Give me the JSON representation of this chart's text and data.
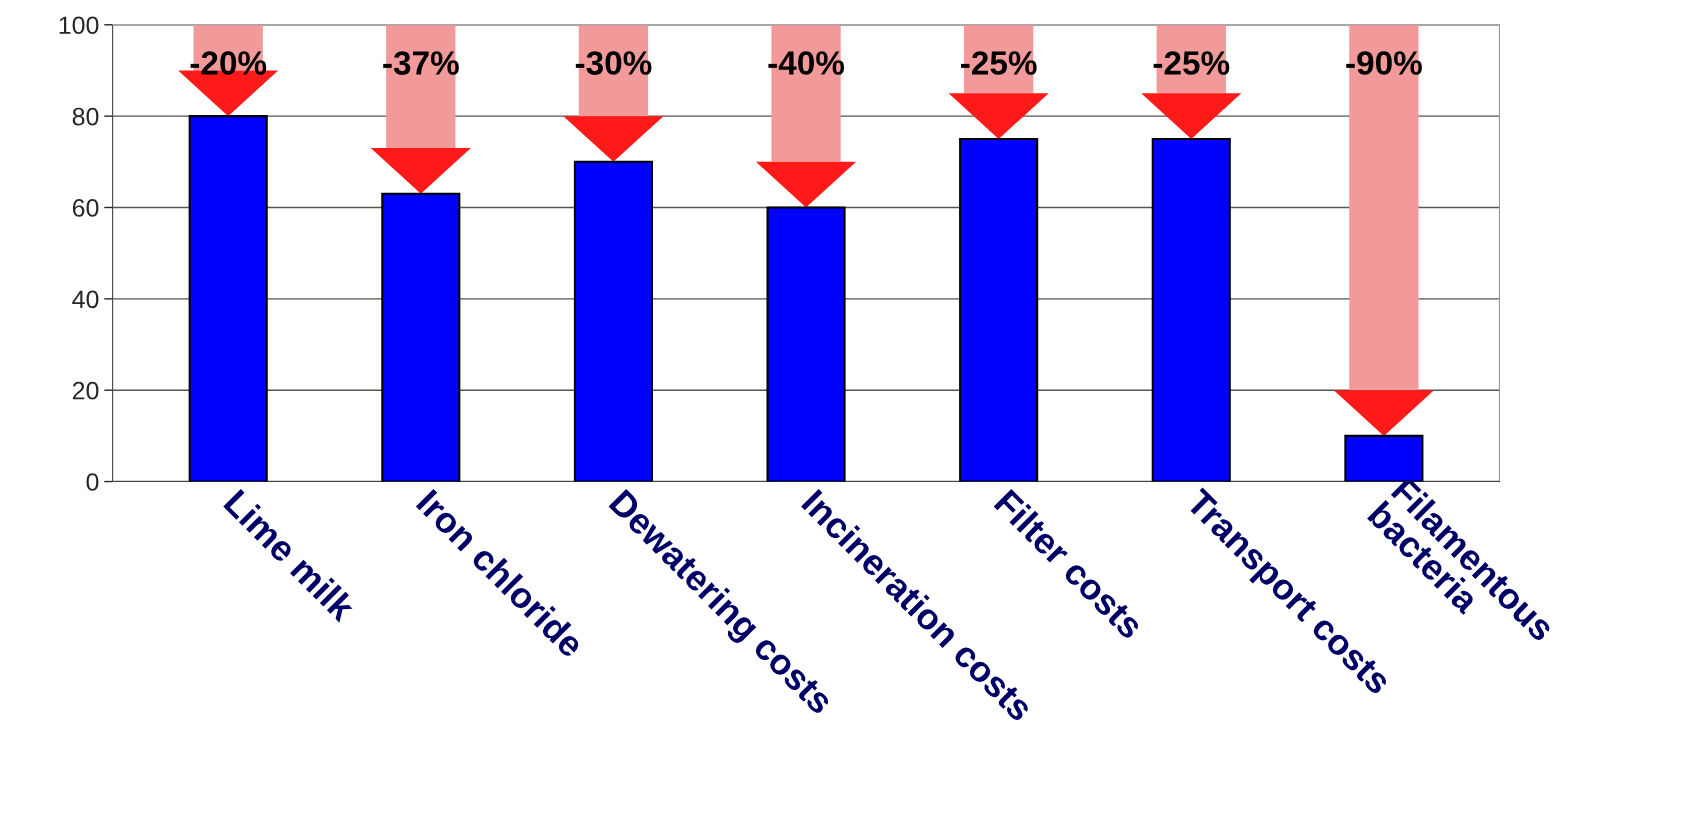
{
  "chart_data": {
    "type": "bar",
    "categories": [
      "Lime milk",
      "Iron chloride",
      "Dewatering costs",
      "Incineration costs",
      "Filter costs",
      "Transport costs",
      "Filamentous\nbacteria"
    ],
    "values": [
      80,
      63,
      70,
      60,
      75,
      75,
      10
    ],
    "color": "#0000ff",
    "ylim": [
      0,
      100
    ],
    "yticks": [
      0,
      20,
      40,
      60,
      80,
      100
    ],
    "grid": "y",
    "annotations": [
      "-20%",
      "-37%",
      "-30%",
      "-40%",
      "-25%",
      "-25%",
      "-90%"
    ]
  }
}
